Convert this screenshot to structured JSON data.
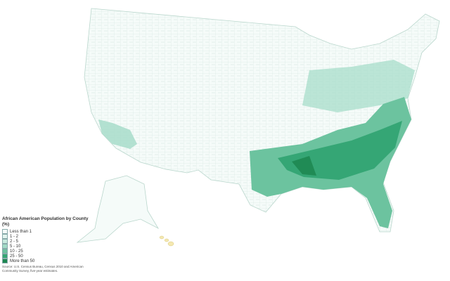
{
  "legend": {
    "title": "African American Population by County (%)",
    "items": [
      {
        "label": "Less than 1",
        "color": "#f5fbf9"
      },
      {
        "label": "1 - 2",
        "color": "#e2f4ee"
      },
      {
        "label": "2 - 5",
        "color": "#c8eadf"
      },
      {
        "label": "5 - 10",
        "color": "#a2dbc7"
      },
      {
        "label": "10 - 25",
        "color": "#6cc39f"
      },
      {
        "label": "25 - 50",
        "color": "#35a675"
      },
      {
        "label": "More than 50",
        "color": "#1c8650"
      }
    ],
    "source": "Source: U.S. Census Bureau, Census 2010 and American Community Survey, five-year estimates."
  }
}
